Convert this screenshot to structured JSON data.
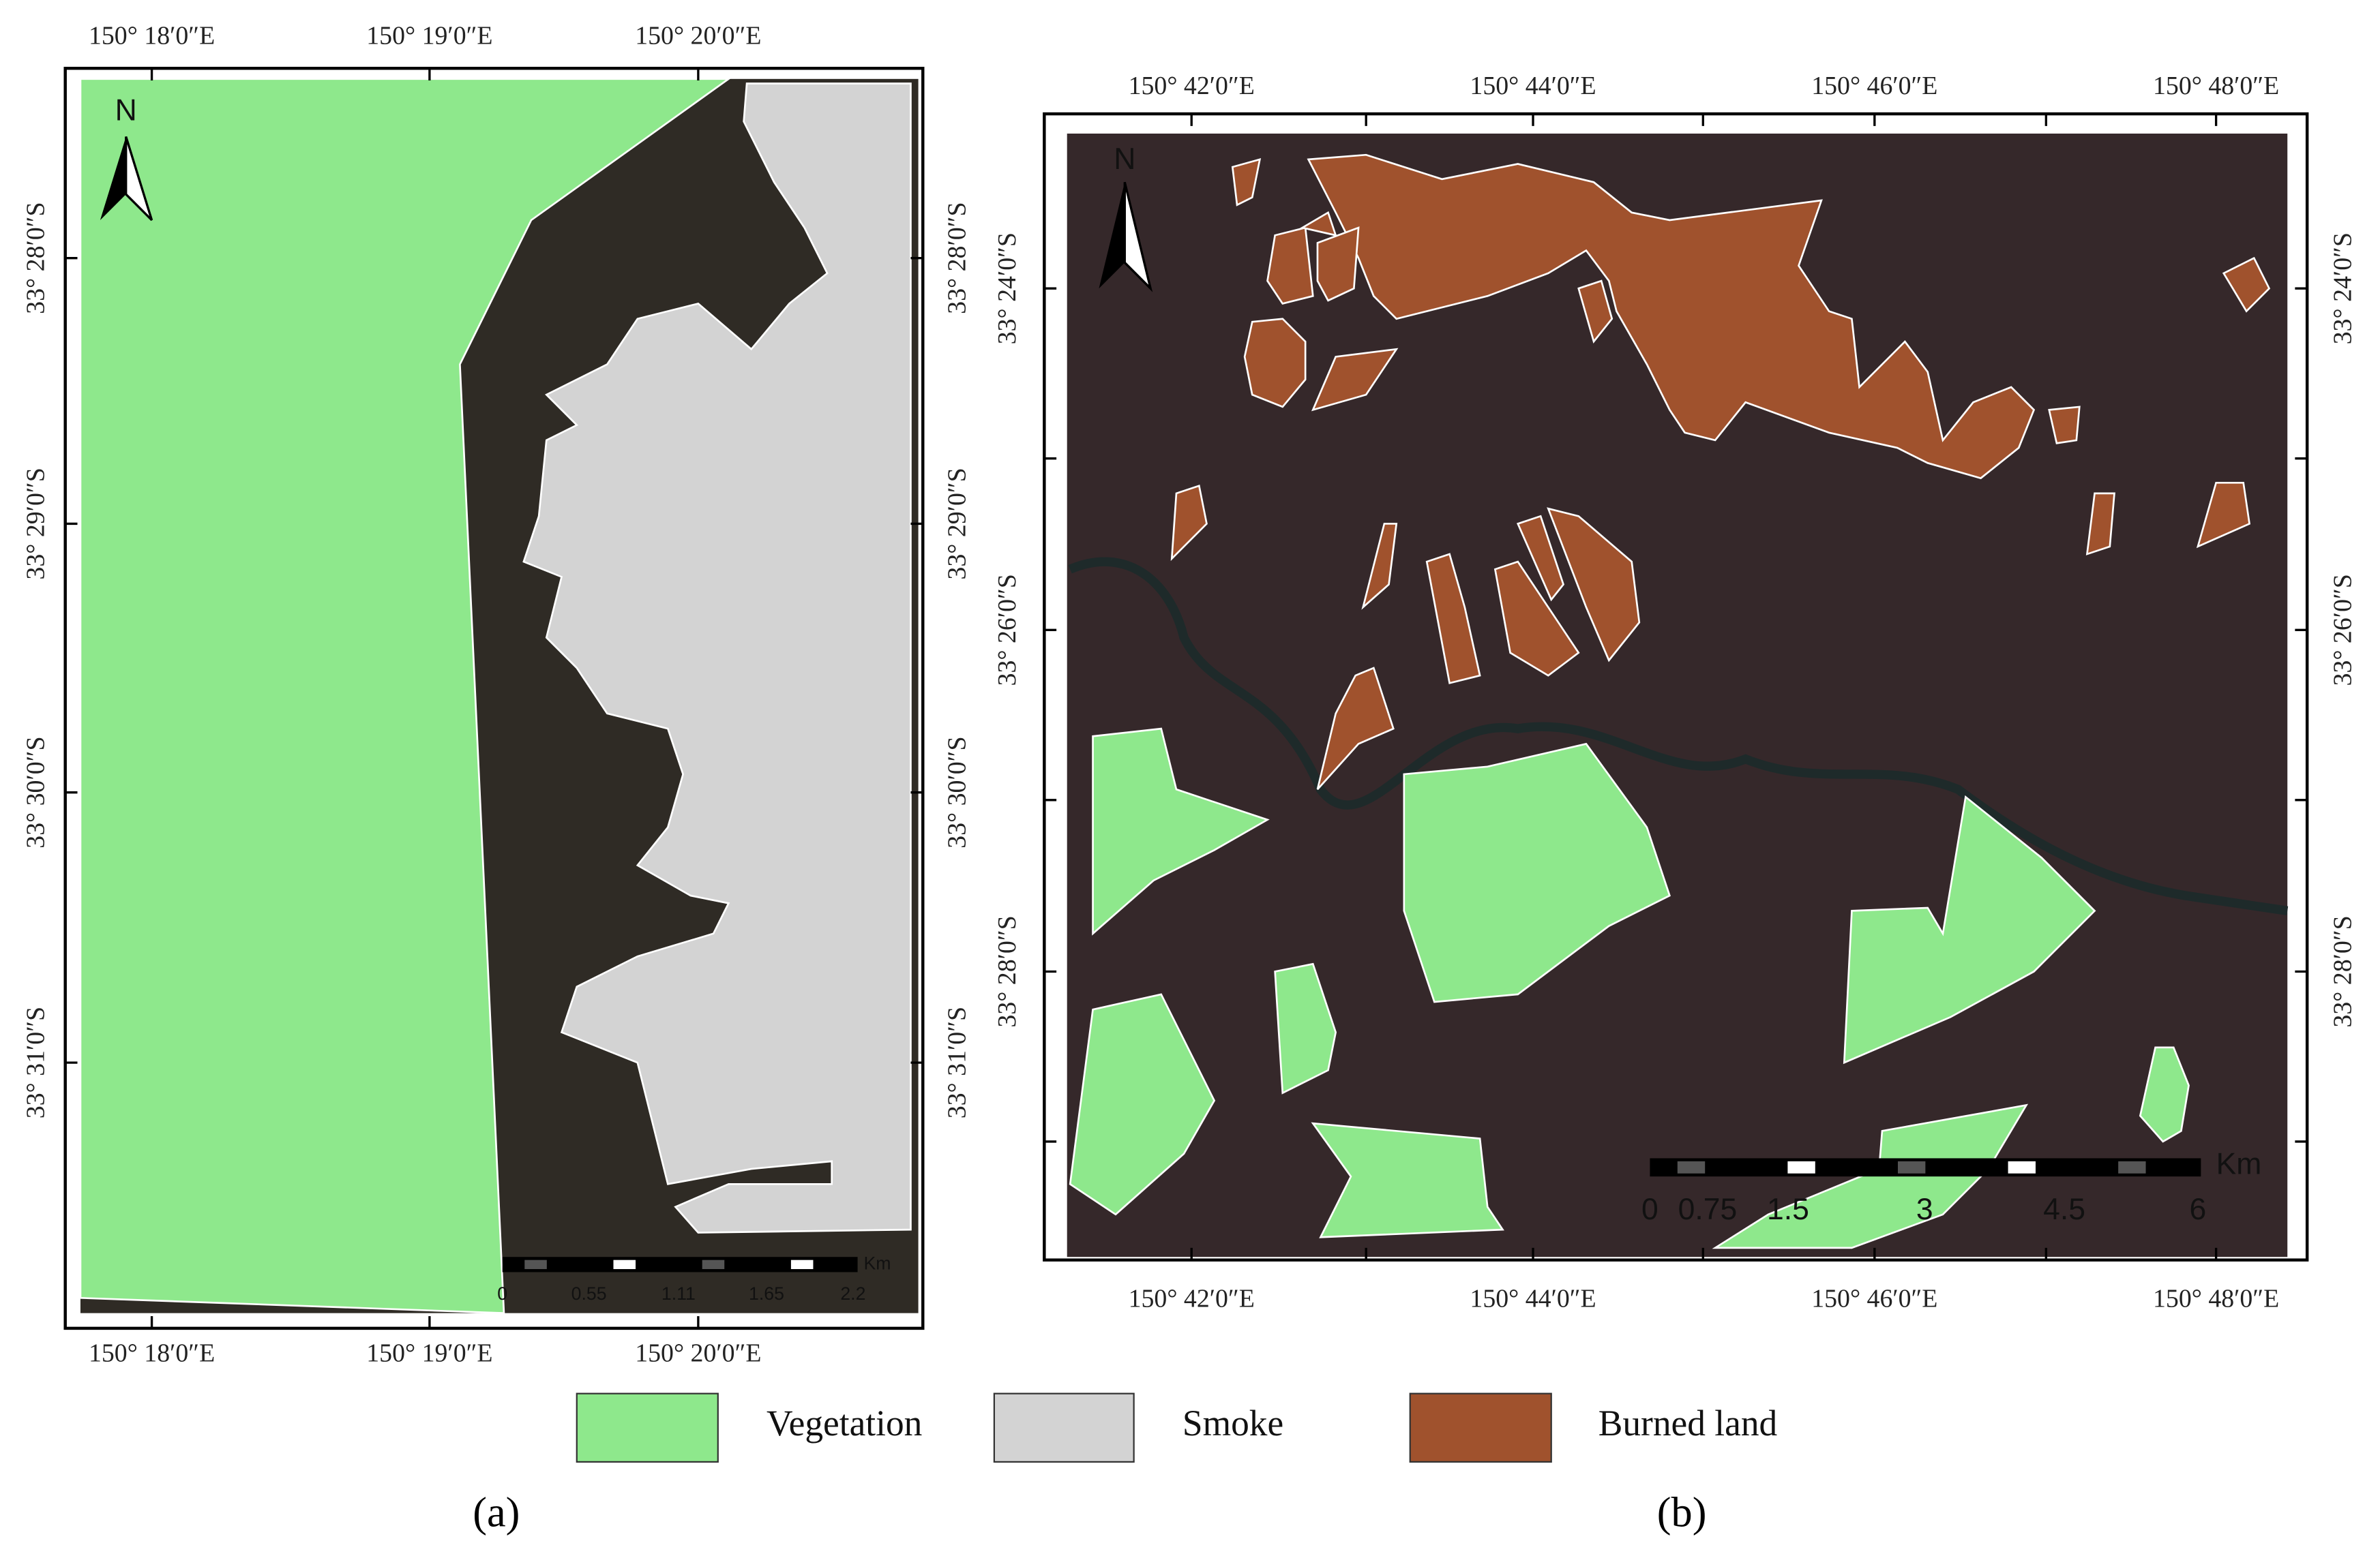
{
  "panels": [
    {
      "label": "(a)",
      "north": "N",
      "lon_ticks": [
        "150° 18′0″E",
        "150° 19′0″E",
        "150° 20′0″E"
      ],
      "lat_ticks": [
        "33° 28′0″S",
        "33° 29′0″S",
        "33° 30′0″S",
        "33° 31′0″S"
      ],
      "scale": {
        "unit": "Km",
        "labels": [
          "0",
          "0.55",
          "1.11",
          "1.65",
          "2.2"
        ]
      }
    },
    {
      "label": "(b)",
      "north": "N",
      "lon_ticks": [
        "150° 42′0″E",
        "150° 44′0″E",
        "150° 46′0″E",
        "150° 48′0″E"
      ],
      "lat_ticks": [
        "33° 24′0″S",
        "33° 26′0″S",
        "33° 28′0″S"
      ],
      "scale": {
        "unit": "Km",
        "labels": [
          "0",
          "0.75",
          "1.5",
          "3",
          "4.5",
          "6"
        ]
      }
    }
  ],
  "legend": [
    "Vegetation",
    "Smoke",
    "Burned land"
  ]
}
